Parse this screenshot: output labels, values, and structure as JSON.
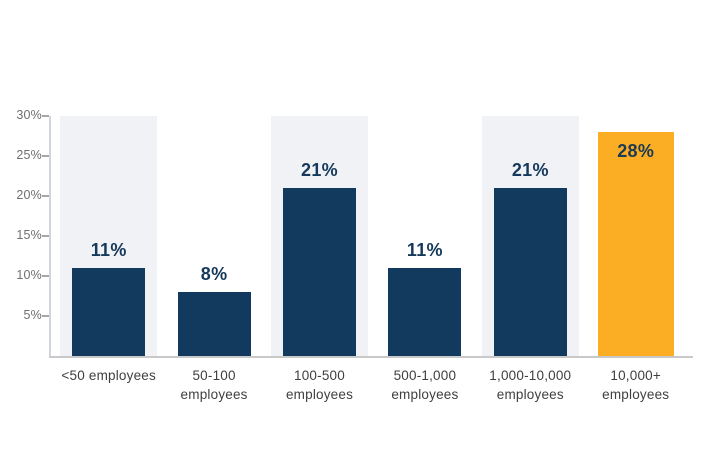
{
  "chart_data": {
    "type": "bar",
    "title": "",
    "xlabel": "",
    "ylabel": "",
    "categories": [
      "<50 employees",
      "50-100 employees",
      "100-500 employees",
      "500-1,000 employees",
      "1,000-10,000 employees",
      "10,000+ employees"
    ],
    "category_lines": [
      [
        "<50 employees"
      ],
      [
        "50-100",
        "employees"
      ],
      [
        "100-500",
        "employees"
      ],
      [
        "500-1,000",
        "employees"
      ],
      [
        "1,000-10,000",
        "employees"
      ],
      [
        "10,000+",
        "employees"
      ]
    ],
    "values": [
      11,
      8,
      21,
      11,
      21,
      28
    ],
    "value_labels": [
      "11%",
      "8%",
      "21%",
      "11%",
      "21%",
      "28%"
    ],
    "yticks": [
      5,
      10,
      15,
      20,
      25,
      30
    ],
    "ytick_labels": [
      "5%",
      "10%",
      "15%",
      "20%",
      "25%",
      "30%"
    ],
    "ylim": [
      0,
      30
    ],
    "grid": false,
    "legend": "none",
    "highlight_index": 5,
    "background_track_columns": [
      0,
      2,
      4
    ],
    "background_track_max": 30
  },
  "colors": {
    "bar_navy": "#113A5E",
    "bar_highlight_orange": "#FBAE24",
    "background_track": "#F0F2F6",
    "axis_line": "#C9C9C9",
    "y_axis_line": "#D2D5DA",
    "tick_mark": "#A6A6A6",
    "y_label_text": "#6F6F6F",
    "x_label_text": "#3F3F3F",
    "value_label_text": "#16395B",
    "value_label_on_highlight": "#1C3A52",
    "page_background": "#FFFFFF"
  }
}
